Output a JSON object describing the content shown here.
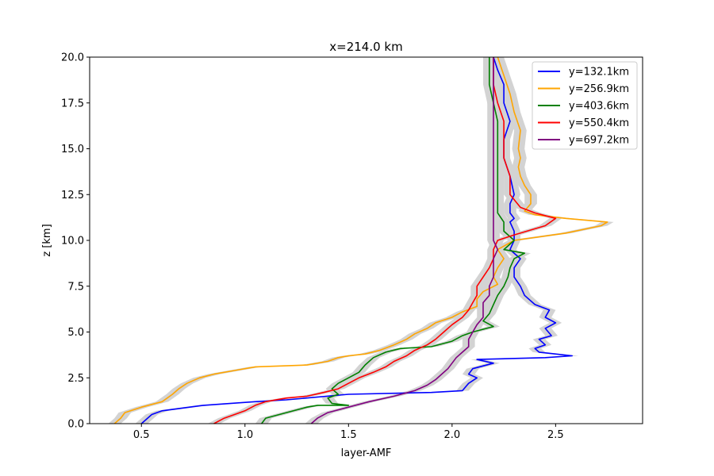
{
  "chart_data": {
    "type": "line",
    "title": "x=214.0 km",
    "xlabel": "layer-AMF",
    "ylabel": "z [km]",
    "xlim": [
      0.25,
      2.92
    ],
    "ylim": [
      0,
      20
    ],
    "xticks": [
      0.5,
      1.0,
      1.5,
      2.0,
      2.5
    ],
    "xtick_labels": [
      "0.5",
      "1.0",
      "1.5",
      "2.0",
      "2.5"
    ],
    "yticks": [
      0,
      2.5,
      5,
      7.5,
      10,
      12.5,
      15,
      17.5,
      20
    ],
    "ytick_labels": [
      "0.0",
      "2.5",
      "5.0",
      "7.5",
      "10.0",
      "12.5",
      "15.0",
      "17.5",
      "20.0"
    ],
    "grid": false,
    "legend_position": "top-right",
    "uncertainty_band_color": "#d3d3d3",
    "series": [
      {
        "name": "y=132.1km",
        "color": "#0000ff",
        "points": [
          [
            0.5,
            0
          ],
          [
            0.55,
            0.5
          ],
          [
            0.6,
            0.7
          ],
          [
            0.8,
            1.0
          ],
          [
            1.05,
            1.2
          ],
          [
            1.2,
            1.3
          ],
          [
            1.5,
            1.6
          ],
          [
            1.9,
            1.7
          ],
          [
            2.05,
            1.8
          ],
          [
            2.08,
            2.2
          ],
          [
            2.12,
            2.5
          ],
          [
            2.08,
            2.7
          ],
          [
            2.1,
            3.0
          ],
          [
            2.2,
            3.3
          ],
          [
            2.12,
            3.5
          ],
          [
            2.45,
            3.6
          ],
          [
            2.58,
            3.7
          ],
          [
            2.42,
            3.9
          ],
          [
            2.4,
            4.1
          ],
          [
            2.45,
            4.3
          ],
          [
            2.42,
            4.6
          ],
          [
            2.48,
            4.8
          ],
          [
            2.45,
            5.2
          ],
          [
            2.5,
            5.5
          ],
          [
            2.45,
            5.8
          ],
          [
            2.47,
            6.2
          ],
          [
            2.4,
            6.5
          ],
          [
            2.35,
            7.0
          ],
          [
            2.33,
            7.5
          ],
          [
            2.3,
            8.0
          ],
          [
            2.3,
            8.5
          ],
          [
            2.33,
            9.0
          ],
          [
            2.28,
            9.5
          ],
          [
            2.3,
            10.0
          ],
          [
            2.3,
            10.5
          ],
          [
            2.28,
            11.0
          ],
          [
            2.3,
            11.2
          ],
          [
            2.28,
            11.5
          ],
          [
            2.28,
            12.0
          ],
          [
            2.3,
            12.5
          ],
          [
            2.28,
            13.5
          ],
          [
            2.25,
            14.5
          ],
          [
            2.25,
            15.5
          ],
          [
            2.28,
            16.5
          ],
          [
            2.25,
            17.5
          ],
          [
            2.25,
            18.5
          ],
          [
            2.22,
            19.3
          ],
          [
            2.2,
            20
          ]
        ]
      },
      {
        "name": "y=256.9km",
        "color": "#ffa500",
        "points": [
          [
            0.37,
            0
          ],
          [
            0.4,
            0.3
          ],
          [
            0.42,
            0.6
          ],
          [
            0.5,
            0.9
          ],
          [
            0.6,
            1.2
          ],
          [
            0.65,
            1.6
          ],
          [
            0.68,
            1.9
          ],
          [
            0.72,
            2.2
          ],
          [
            0.78,
            2.5
          ],
          [
            0.85,
            2.7
          ],
          [
            0.95,
            2.9
          ],
          [
            1.05,
            3.1
          ],
          [
            1.3,
            3.2
          ],
          [
            1.4,
            3.4
          ],
          [
            1.45,
            3.6
          ],
          [
            1.5,
            3.7
          ],
          [
            1.58,
            3.8
          ],
          [
            1.65,
            4.0
          ],
          [
            1.72,
            4.3
          ],
          [
            1.78,
            4.6
          ],
          [
            1.82,
            4.9
          ],
          [
            1.88,
            5.2
          ],
          [
            1.92,
            5.5
          ],
          [
            2.0,
            5.8
          ],
          [
            2.05,
            6.1
          ],
          [
            2.12,
            6.4
          ],
          [
            2.12,
            6.8
          ],
          [
            2.15,
            7.2
          ],
          [
            2.22,
            7.6
          ],
          [
            2.2,
            8.0
          ],
          [
            2.22,
            8.5
          ],
          [
            2.25,
            9.0
          ],
          [
            2.22,
            9.5
          ],
          [
            2.3,
            10.0
          ],
          [
            2.55,
            10.4
          ],
          [
            2.72,
            10.8
          ],
          [
            2.75,
            11.0
          ],
          [
            2.55,
            11.2
          ],
          [
            2.4,
            11.4
          ],
          [
            2.35,
            11.6
          ],
          [
            2.38,
            12.0
          ],
          [
            2.38,
            12.5
          ],
          [
            2.35,
            13.0
          ],
          [
            2.33,
            13.5
          ],
          [
            2.32,
            14.0
          ],
          [
            2.33,
            14.5
          ],
          [
            2.32,
            15.0
          ],
          [
            2.33,
            16.0
          ],
          [
            2.3,
            17.0
          ],
          [
            2.28,
            18.0
          ],
          [
            2.25,
            19.0
          ],
          [
            2.22,
            20
          ]
        ]
      },
      {
        "name": "y=403.6km",
        "color": "#008000",
        "points": [
          [
            1.08,
            0
          ],
          [
            1.1,
            0.3
          ],
          [
            1.2,
            0.6
          ],
          [
            1.3,
            0.9
          ],
          [
            1.35,
            1.0
          ],
          [
            1.5,
            1.0
          ],
          [
            1.42,
            1.1
          ],
          [
            1.4,
            1.4
          ],
          [
            1.45,
            1.6
          ],
          [
            1.42,
            1.9
          ],
          [
            1.45,
            2.2
          ],
          [
            1.5,
            2.5
          ],
          [
            1.55,
            2.8
          ],
          [
            1.58,
            3.2
          ],
          [
            1.62,
            3.6
          ],
          [
            1.68,
            3.9
          ],
          [
            1.75,
            4.1
          ],
          [
            1.9,
            4.2
          ],
          [
            2.0,
            4.5
          ],
          [
            2.05,
            4.8
          ],
          [
            2.1,
            5.0
          ],
          [
            2.2,
            5.3
          ],
          [
            2.15,
            5.6
          ],
          [
            2.18,
            6.0
          ],
          [
            2.2,
            6.5
          ],
          [
            2.22,
            7.0
          ],
          [
            2.25,
            7.5
          ],
          [
            2.27,
            8.0
          ],
          [
            2.28,
            8.5
          ],
          [
            2.3,
            9.0
          ],
          [
            2.35,
            9.3
          ],
          [
            2.25,
            9.5
          ],
          [
            2.3,
            10.0
          ],
          [
            2.25,
            10.5
          ],
          [
            2.25,
            11.0
          ],
          [
            2.22,
            11.5
          ],
          [
            2.22,
            12.5
          ],
          [
            2.22,
            13.5
          ],
          [
            2.22,
            14.5
          ],
          [
            2.22,
            15.5
          ],
          [
            2.22,
            16.5
          ],
          [
            2.2,
            17.5
          ],
          [
            2.18,
            18.5
          ],
          [
            2.18,
            19.3
          ],
          [
            2.18,
            20
          ]
        ]
      },
      {
        "name": "y=550.4km",
        "color": "#ff0000",
        "points": [
          [
            0.85,
            0
          ],
          [
            0.9,
            0.3
          ],
          [
            0.95,
            0.5
          ],
          [
            1.0,
            0.7
          ],
          [
            1.05,
            1.0
          ],
          [
            1.1,
            1.2
          ],
          [
            1.2,
            1.4
          ],
          [
            1.3,
            1.5
          ],
          [
            1.38,
            1.7
          ],
          [
            1.45,
            1.9
          ],
          [
            1.5,
            2.2
          ],
          [
            1.55,
            2.5
          ],
          [
            1.62,
            2.8
          ],
          [
            1.68,
            3.1
          ],
          [
            1.72,
            3.4
          ],
          [
            1.78,
            3.7
          ],
          [
            1.82,
            4.0
          ],
          [
            1.88,
            4.3
          ],
          [
            1.92,
            4.6
          ],
          [
            1.96,
            5.0
          ],
          [
            2.0,
            5.4
          ],
          [
            2.05,
            5.8
          ],
          [
            2.08,
            6.2
          ],
          [
            2.1,
            6.6
          ],
          [
            2.12,
            7.0
          ],
          [
            2.12,
            7.5
          ],
          [
            2.15,
            8.0
          ],
          [
            2.18,
            8.5
          ],
          [
            2.2,
            9.0
          ],
          [
            2.2,
            9.5
          ],
          [
            2.22,
            10.0
          ],
          [
            2.3,
            10.3
          ],
          [
            2.45,
            10.8
          ],
          [
            2.5,
            11.2
          ],
          [
            2.4,
            11.5
          ],
          [
            2.33,
            11.8
          ],
          [
            2.28,
            12.5
          ],
          [
            2.28,
            13.5
          ],
          [
            2.25,
            14.5
          ],
          [
            2.25,
            15.5
          ],
          [
            2.25,
            16.5
          ],
          [
            2.22,
            17.5
          ],
          [
            2.2,
            18.5
          ],
          [
            2.2,
            19.3
          ],
          [
            2.2,
            20
          ]
        ]
      },
      {
        "name": "y=697.2km",
        "color": "#800080",
        "points": [
          [
            1.32,
            0
          ],
          [
            1.35,
            0.3
          ],
          [
            1.4,
            0.6
          ],
          [
            1.5,
            0.9
          ],
          [
            1.6,
            1.2
          ],
          [
            1.72,
            1.5
          ],
          [
            1.82,
            1.8
          ],
          [
            1.88,
            2.1
          ],
          [
            1.92,
            2.4
          ],
          [
            1.95,
            2.7
          ],
          [
            1.98,
            3.0
          ],
          [
            2.0,
            3.3
          ],
          [
            2.02,
            3.6
          ],
          [
            2.05,
            3.9
          ],
          [
            2.08,
            4.2
          ],
          [
            2.08,
            4.6
          ],
          [
            2.1,
            5.0
          ],
          [
            2.12,
            5.4
          ],
          [
            2.15,
            5.8
          ],
          [
            2.15,
            6.2
          ],
          [
            2.15,
            6.6
          ],
          [
            2.18,
            7.0
          ],
          [
            2.18,
            7.5
          ],
          [
            2.2,
            8.0
          ],
          [
            2.2,
            8.5
          ],
          [
            2.2,
            9.0
          ],
          [
            2.22,
            9.5
          ],
          [
            2.2,
            10.0
          ],
          [
            2.2,
            10.5
          ],
          [
            2.2,
            11.0
          ],
          [
            2.2,
            11.5
          ],
          [
            2.2,
            12.5
          ],
          [
            2.2,
            13.5
          ],
          [
            2.2,
            14.5
          ],
          [
            2.2,
            15.5
          ],
          [
            2.2,
            16.5
          ],
          [
            2.2,
            17.5
          ],
          [
            2.2,
            18.5
          ],
          [
            2.2,
            19.3
          ],
          [
            2.2,
            20
          ]
        ]
      }
    ]
  }
}
